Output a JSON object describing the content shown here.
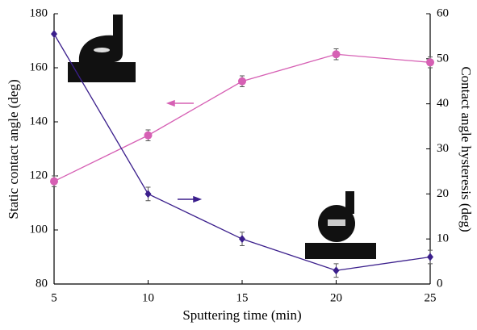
{
  "chart_data": {
    "type": "line",
    "x_label": "Sputtering time (min)",
    "y_label": "Static contact angle (deg)",
    "y2_label": "Contact angle hysteresis (deg)",
    "x": [
      5,
      10,
      15,
      20,
      25
    ],
    "xlim": [
      5,
      25
    ],
    "xticks": [
      5,
      10,
      15,
      20,
      25
    ],
    "ylim": [
      80,
      180
    ],
    "yticks": [
      80,
      100,
      120,
      140,
      160,
      180
    ],
    "y2lim": [
      0,
      60
    ],
    "y2ticks": [
      0,
      10,
      20,
      30,
      40,
      50,
      60
    ],
    "series": [
      {
        "color": "#d660b4",
        "marker": "circle",
        "values": [
          118,
          135,
          155,
          165,
          162
        ],
        "errors": [
          2,
          2,
          2,
          2,
          2
        ]
      },
      {
        "color": "#3b1f8c",
        "marker": "diamond",
        "axis": "y2",
        "values": [
          55.5,
          20,
          10,
          3,
          6
        ],
        "errors": [
          0,
          1.5,
          1.5,
          1.5,
          1.5
        ]
      }
    ]
  }
}
